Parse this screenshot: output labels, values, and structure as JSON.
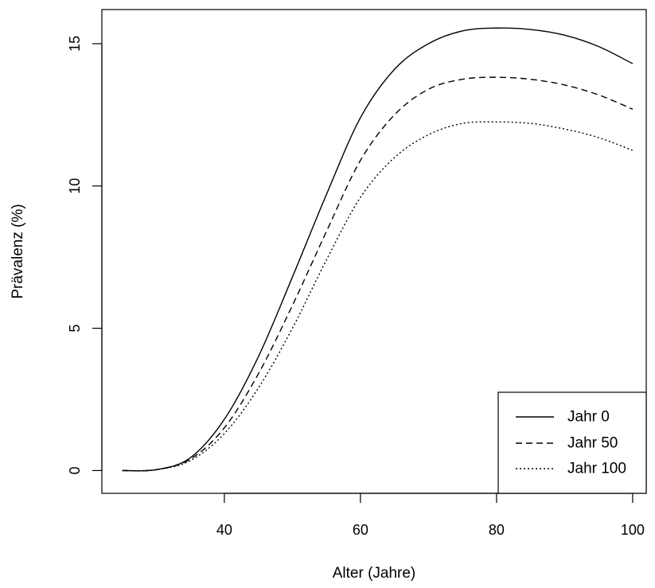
{
  "chart_data": {
    "type": "line",
    "title": "",
    "xlabel": "Alter (Jahre)",
    "ylabel": "Prävalenz (%)",
    "xlim": [
      22,
      102
    ],
    "ylim": [
      -0.8,
      16.2
    ],
    "xticks": [
      40,
      60,
      80,
      100
    ],
    "yticks": [
      0,
      5,
      10,
      15
    ],
    "grid": false,
    "legend": "bottom-right",
    "x": [
      25,
      30,
      35,
      40,
      45,
      50,
      55,
      60,
      65,
      70,
      75,
      80,
      85,
      90,
      95,
      100
    ],
    "series": [
      {
        "name": "Jahr 0",
        "line_style": "solid",
        "values": [
          0.0,
          0.03,
          0.45,
          1.8,
          4.0,
          6.8,
          9.7,
          12.4,
          14.1,
          15.0,
          15.45,
          15.55,
          15.5,
          15.3,
          14.9,
          14.3
        ]
      },
      {
        "name": "Jahr 50",
        "line_style": "dashed",
        "values": [
          0.0,
          0.03,
          0.4,
          1.5,
          3.4,
          5.8,
          8.4,
          10.9,
          12.5,
          13.4,
          13.75,
          13.82,
          13.75,
          13.55,
          13.2,
          12.7
        ]
      },
      {
        "name": "Jahr 100",
        "line_style": "dotted",
        "values": [
          0.0,
          0.03,
          0.35,
          1.3,
          2.9,
          5.0,
          7.4,
          9.6,
          11.0,
          11.8,
          12.2,
          12.25,
          12.2,
          12.0,
          11.7,
          11.25
        ]
      }
    ]
  }
}
